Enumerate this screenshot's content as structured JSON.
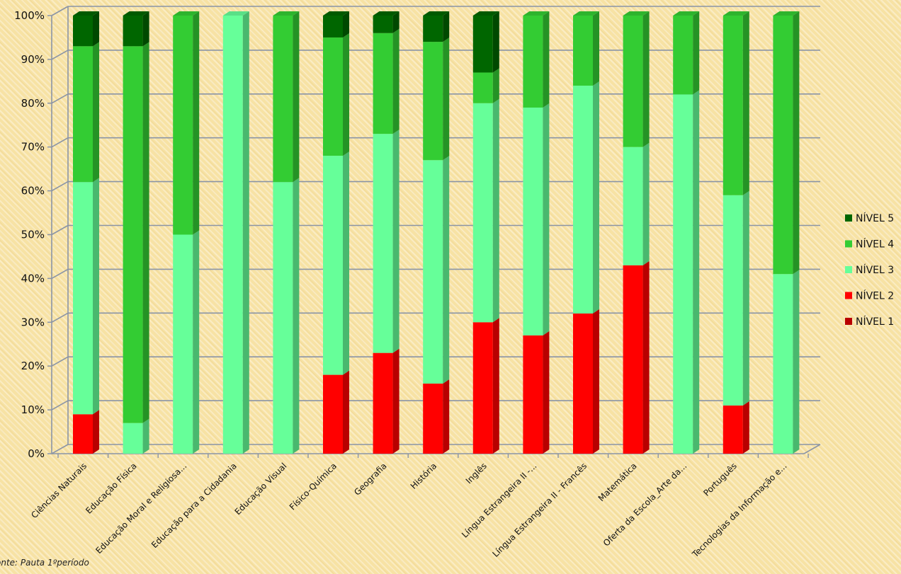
{
  "chart_data": {
    "type": "bar",
    "stacked": true,
    "three_d": true,
    "categories": [
      "Ciências Naturais",
      "Educação Física",
      "Educação Moral e Religiosa...",
      "Educação para a Cidadania",
      "Educação Visual",
      "Físico-Química",
      "Geografia",
      "História",
      "Inglês",
      "Língua Estrangeira II -...",
      "Língua Estrangeira II - Francês",
      "Matemática",
      "Oferta da Escola_Arte da...",
      "Português",
      "Tecnologias da Informação e..."
    ],
    "series": [
      {
        "name": "NÍVEL 1",
        "color": "#b80000",
        "values": [
          0,
          0,
          0,
          0,
          0,
          0,
          0,
          0,
          0,
          0,
          0,
          0,
          0,
          0,
          0
        ]
      },
      {
        "name": "NÍVEL 2",
        "color": "#ff0000",
        "values": [
          9,
          0,
          0,
          0,
          0,
          18,
          23,
          16,
          30,
          27,
          32,
          43,
          0,
          11,
          0
        ]
      },
      {
        "name": "NÍVEL 3",
        "color": "#66ff99",
        "values": [
          53,
          7,
          50,
          100,
          62,
          50,
          50,
          51,
          50,
          52,
          52,
          27,
          82,
          48,
          41
        ]
      },
      {
        "name": "NÍVEL 4",
        "color": "#33cc33",
        "values": [
          31,
          86,
          50,
          0,
          38,
          27,
          23,
          27,
          7,
          21,
          16,
          30,
          18,
          41,
          59
        ]
      },
      {
        "name": "NÍVEL 5",
        "color": "#006600",
        "values": [
          7,
          7,
          0,
          0,
          0,
          5,
          4,
          6,
          13,
          0,
          0,
          0,
          0,
          0,
          0
        ]
      }
    ],
    "ylim": [
      0,
      100
    ],
    "y_ticks": [
      "0%",
      "10%",
      "20%",
      "30%",
      "40%",
      "50%",
      "60%",
      "70%",
      "80%",
      "90%",
      "100%"
    ],
    "grid": true,
    "legend_position": "right",
    "legend_order": [
      "NÍVEL 5",
      "NÍVEL 4",
      "NÍVEL 3",
      "NÍVEL 2",
      "NÍVEL 1"
    ]
  },
  "source_note": "onte: Pauta 1ºperíodo"
}
